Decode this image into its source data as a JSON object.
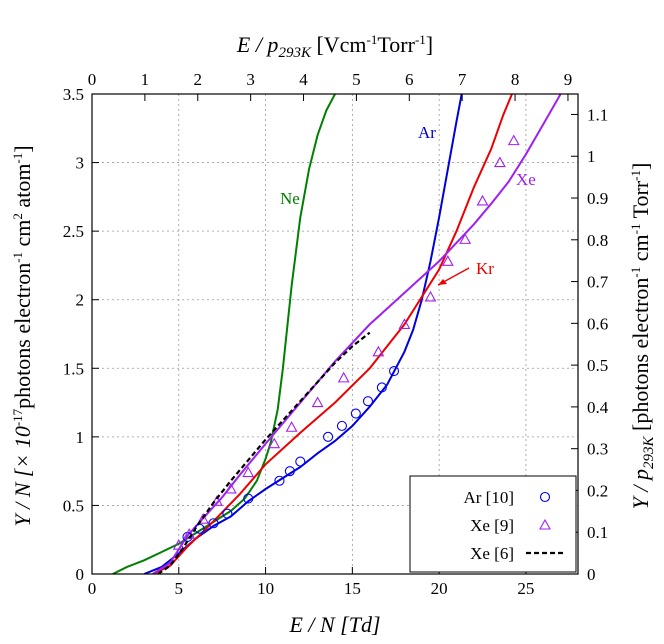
{
  "chart_data": {
    "type": "line",
    "xlabel": {
      "main": "E / N [Td]"
    },
    "x2label": {
      "pre": "E / p",
      "sub": "293K",
      "post": " [Vcm",
      "sup1": "-1",
      "mid": "Torr",
      "sup2": "-1",
      "end": "]"
    },
    "ylabel": {
      "pre": "Y / N [× 10",
      "sup": "-17",
      "post": "photons electron",
      "sup2": "-1",
      "post2": " cm",
      "sup3": "2",
      "post3": " atom",
      "sup4": "-1",
      "end": "]"
    },
    "y2label": {
      "pre": "Y / p",
      "sub": "293K",
      "post": " [photons electron",
      "sup1": "-1",
      "mid": " cm",
      "sup2": "-1",
      "mid2": " Torr",
      "sup3": "-1",
      "end": "]"
    },
    "xlim": [
      0,
      28
    ],
    "ylim": [
      0,
      3.5
    ],
    "x2lim": [
      0,
      9.19
    ],
    "y2lim": [
      0,
      1.149
    ],
    "xticks": [
      "0",
      "5",
      "10",
      "15",
      "20",
      "25"
    ],
    "yticks": [
      "0",
      "0.5",
      "1",
      "1.5",
      "2",
      "2.5",
      "3",
      "3.5"
    ],
    "x2ticks": [
      "0",
      "1",
      "2",
      "3",
      "4",
      "5",
      "6",
      "7",
      "8",
      "9"
    ],
    "y2ticks": [
      "0",
      "0.1",
      "0.2",
      "0.3",
      "0.4",
      "0.5",
      "0.6",
      "0.7",
      "0.8",
      "0.9",
      "1",
      "1.1"
    ],
    "grid": true,
    "legend_position": "bottom-right",
    "series": [
      {
        "name": "Ne",
        "kind": "line",
        "color": "#008000",
        "x": [
          1.2,
          2,
          3,
          4,
          5,
          6,
          7,
          8,
          8.8,
          9.5,
          10,
          10.3,
          10.7,
          11,
          11.5,
          12,
          12.5,
          13,
          13.5,
          14
        ],
        "y": [
          0,
          0.05,
          0.1,
          0.16,
          0.22,
          0.3,
          0.38,
          0.46,
          0.55,
          0.68,
          0.84,
          0.96,
          1.2,
          1.5,
          2.1,
          2.6,
          2.95,
          3.2,
          3.38,
          3.5
        ]
      },
      {
        "name": "Ar",
        "kind": "line",
        "color": "#0000dd",
        "x": [
          3,
          4,
          5,
          6,
          7,
          8,
          9,
          10,
          11,
          12,
          13,
          14,
          15,
          16,
          17,
          18,
          18.5,
          19,
          19.5,
          20,
          20.5,
          21,
          21.3
        ],
        "y": [
          0,
          0.05,
          0.15,
          0.26,
          0.35,
          0.42,
          0.53,
          0.62,
          0.7,
          0.78,
          0.88,
          0.97,
          1.08,
          1.22,
          1.38,
          1.62,
          1.78,
          2.0,
          2.28,
          2.6,
          2.95,
          3.3,
          3.5
        ]
      },
      {
        "name": "Kr",
        "kind": "line",
        "color": "#ee0000",
        "x": [
          3.5,
          4.5,
          5.5,
          6.5,
          7.5,
          8.5,
          10,
          12,
          14,
          16,
          18,
          20,
          21,
          22,
          23,
          23.7,
          24.2
        ],
        "y": [
          0,
          0.06,
          0.2,
          0.32,
          0.45,
          0.58,
          0.8,
          1.03,
          1.25,
          1.5,
          1.82,
          2.22,
          2.5,
          2.82,
          3.1,
          3.35,
          3.5
        ]
      },
      {
        "name": "Xe",
        "kind": "line",
        "color": "#a020f0",
        "x": [
          3.5,
          4.5,
          5.5,
          6.5,
          7.5,
          8.5,
          10,
          12,
          14,
          16,
          18,
          20,
          22,
          23,
          24,
          25,
          26,
          27
        ],
        "y": [
          0,
          0.08,
          0.28,
          0.42,
          0.56,
          0.72,
          0.95,
          1.25,
          1.55,
          1.82,
          2.05,
          2.28,
          2.55,
          2.7,
          2.86,
          3.06,
          3.28,
          3.5
        ]
      },
      {
        "name": "Ar [10]",
        "kind": "scatter",
        "marker": "circle",
        "color": "#0000ff",
        "x": [
          5.5,
          6.2,
          7.0,
          7.8,
          9.0,
          10.8,
          11.4,
          12.0,
          13.6,
          14.4,
          15.2,
          15.9,
          16.7,
          17.4
        ],
        "y": [
          0.27,
          0.33,
          0.37,
          0.44,
          0.55,
          0.68,
          0.75,
          0.82,
          1.0,
          1.08,
          1.17,
          1.26,
          1.36,
          1.48
        ]
      },
      {
        "name": "Xe [9]",
        "kind": "scatter",
        "marker": "triangle",
        "color": "#a020f0",
        "x": [
          5.0,
          5.6,
          6.4,
          7.2,
          8.0,
          9.0,
          10.5,
          11.5,
          13.0,
          14.5,
          16.5,
          18.0,
          19.5,
          20.5,
          21.5,
          22.5,
          23.5,
          24.3
        ],
        "y": [
          0.21,
          0.29,
          0.4,
          0.53,
          0.62,
          0.74,
          0.95,
          1.07,
          1.25,
          1.43,
          1.62,
          1.82,
          2.02,
          2.28,
          2.44,
          2.72,
          3.0,
          3.16
        ]
      },
      {
        "name": "Xe [6]",
        "kind": "dashed",
        "color": "#000000",
        "x": [
          3.8,
          4.5,
          5.2,
          6,
          7,
          8,
          9,
          10,
          11,
          12,
          13,
          14,
          15,
          16
        ],
        "y": [
          0,
          0.06,
          0.18,
          0.34,
          0.52,
          0.68,
          0.83,
          0.98,
          1.12,
          1.26,
          1.4,
          1.54,
          1.66,
          1.76
        ]
      }
    ],
    "annotations": [
      {
        "text": "Ne",
        "color": "#008000"
      },
      {
        "text": "Ar",
        "color": "#0000dd"
      },
      {
        "text": "Xe",
        "color": "#a020f0"
      },
      {
        "text": "Kr",
        "color": "#ee0000"
      }
    ]
  }
}
